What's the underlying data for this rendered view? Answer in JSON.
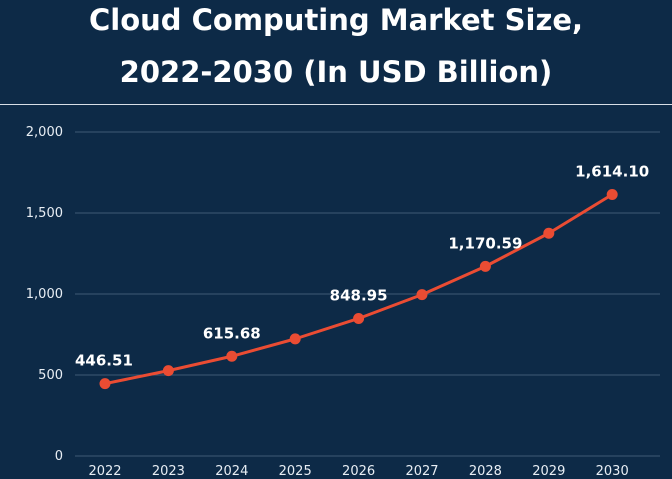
{
  "chart_data": {
    "type": "line",
    "title_line1": "Cloud Computing Market Size,",
    "title_line2": "2022-2030 (In USD Billion)",
    "xlabel": "",
    "ylabel": "",
    "ylim": [
      0,
      2000
    ],
    "yticks": [
      0,
      500,
      1000,
      1500,
      2000
    ],
    "ytick_labels": [
      "0",
      "500",
      "1,000",
      "1,500",
      "2,000"
    ],
    "categories": [
      "2022",
      "2023",
      "2024",
      "2025",
      "2026",
      "2027",
      "2028",
      "2029",
      "2030"
    ],
    "values": [
      446.51,
      527,
      615.68,
      723,
      848.95,
      996,
      1170.59,
      1375,
      1614.1
    ],
    "data_labels": [
      "446.51",
      null,
      "615.68",
      null,
      "848.95",
      null,
      "1,170.59",
      null,
      "1,614.10"
    ],
    "grid": true,
    "colors": {
      "line": "#ea4c33",
      "background": "#0d2a47",
      "grid": "#3f5a76"
    }
  }
}
